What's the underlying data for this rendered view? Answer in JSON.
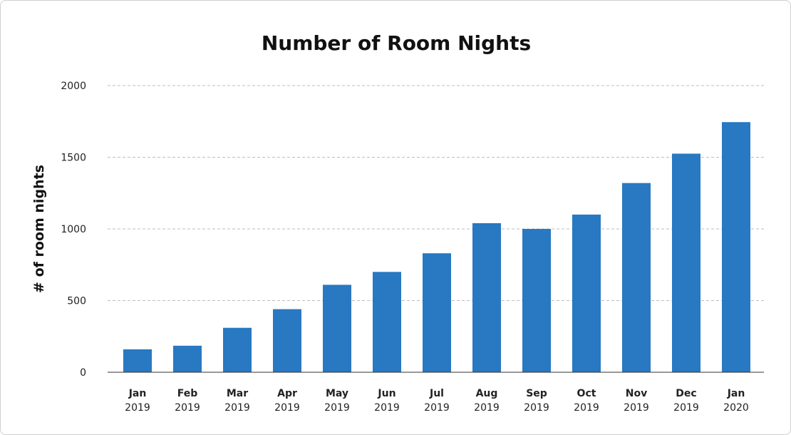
{
  "chart_data": {
    "type": "bar",
    "title": "Number of Room Nights",
    "xlabel": "",
    "ylabel": "# of room nights",
    "ylim": [
      0,
      2000
    ],
    "yticks": [
      0,
      500,
      1000,
      1500,
      2000
    ],
    "grid": true,
    "legend": "none",
    "bar_color": "#2878c2",
    "categories": [
      {
        "month": "Jan",
        "year": "2019"
      },
      {
        "month": "Feb",
        "year": "2019"
      },
      {
        "month": "Mar",
        "year": "2019"
      },
      {
        "month": "Apr",
        "year": "2019"
      },
      {
        "month": "May",
        "year": "2019"
      },
      {
        "month": "Jun",
        "year": "2019"
      },
      {
        "month": "Jul",
        "year": "2019"
      },
      {
        "month": "Aug",
        "year": "2019"
      },
      {
        "month": "Sep",
        "year": "2019"
      },
      {
        "month": "Oct",
        "year": "2019"
      },
      {
        "month": "Nov",
        "year": "2019"
      },
      {
        "month": "Dec",
        "year": "2019"
      },
      {
        "month": "Jan",
        "year": "2020"
      }
    ],
    "values": [
      160,
      185,
      310,
      440,
      610,
      700,
      830,
      1040,
      1000,
      1100,
      1320,
      1525,
      1745
    ]
  }
}
